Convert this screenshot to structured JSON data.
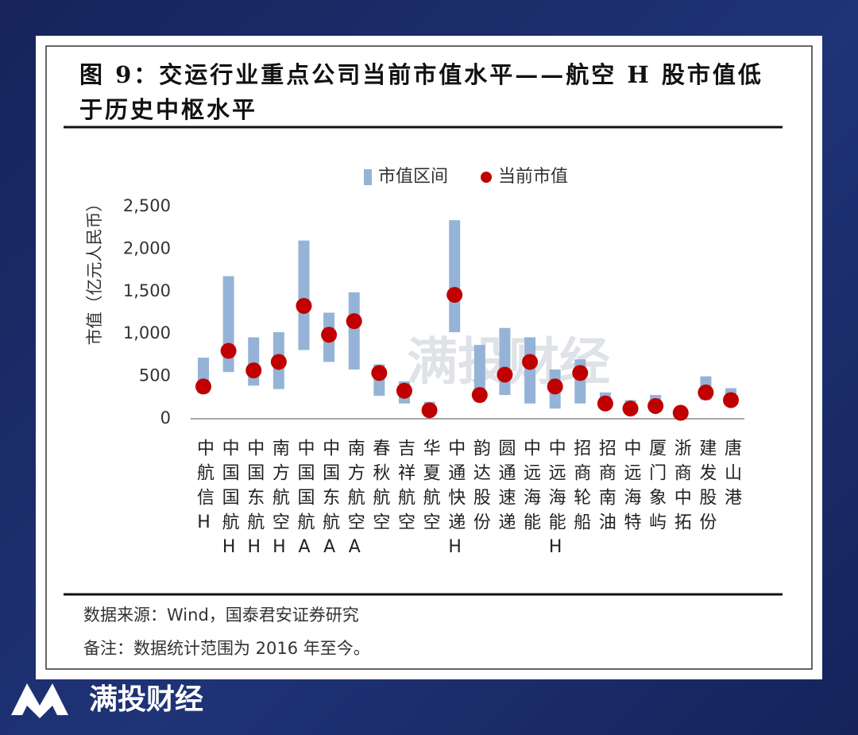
{
  "chart_data": {
    "type": "range",
    "title": "图 9：交运行业重点公司当前市值水平——航空 H 股市值低于历史中枢水平",
    "ylabel": "市值（亿元人民币）",
    "categories": [
      "中航信H",
      "中国国航H",
      "中国东航H",
      "南方航空H",
      "中国国航A",
      "中国东航A",
      "南方航空A",
      "春秋航空",
      "吉祥航空",
      "华夏航空",
      "中通快递H",
      "韵达股份",
      "圆通速递",
      "中远海能",
      "中远海能H",
      "招商轮船",
      "招商南油",
      "中远海特",
      "厦门象屿",
      "浙商中拓",
      "建发股份",
      "唐山港"
    ],
    "series": [
      {
        "name": "市值区间",
        "color": "#95b3d7",
        "low": [
          300,
          550,
          390,
          350,
          810,
          670,
          580,
          270,
          180,
          80,
          1020,
          200,
          280,
          180,
          120,
          180,
          120,
          70,
          110,
          30,
          220,
          160
        ],
        "high": [
          720,
          1680,
          960,
          1020,
          2100,
          1250,
          1490,
          640,
          440,
          200,
          2340,
          870,
          1070,
          960,
          580,
          700,
          310,
          220,
          280,
          110,
          500,
          360
        ]
      },
      {
        "name": "当前市值",
        "color": "#c00000",
        "values": [
          380,
          800,
          570,
          670,
          1330,
          990,
          1150,
          540,
          330,
          100,
          1460,
          280,
          520,
          670,
          380,
          540,
          180,
          120,
          150,
          70,
          310,
          220
        ]
      }
    ],
    "ylim": [
      0,
      2500
    ],
    "yticks": [
      0,
      500,
      {
        "value": 1000,
        "label": "1,000"
      },
      {
        "value": 1500,
        "label": "1,500"
      },
      {
        "value": 2000,
        "label": "2,000"
      },
      {
        "value": 2500,
        "label": "2,500"
      }
    ],
    "grid": false
  },
  "source": "数据来源：Wind，国泰君安证券研究",
  "note": "备注：数据统计范围为 2016 年至今。",
  "brand": "满投财经"
}
